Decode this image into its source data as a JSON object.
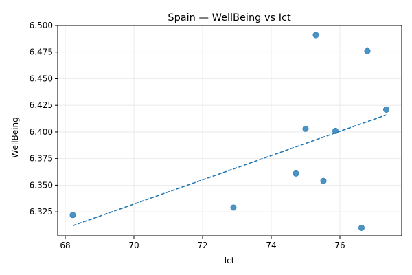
{
  "chart_data": {
    "type": "scatter",
    "title": "Spain — WellBeing vs Ict",
    "xlabel": "Ict",
    "ylabel": "WellBeing",
    "xlim": [
      67.78,
      77.8
    ],
    "ylim": [
      6.3025,
      6.5
    ],
    "x_ticks": [
      68,
      70,
      72,
      74,
      76
    ],
    "x_tick_labels": [
      "68",
      "70",
      "72",
      "74",
      "76"
    ],
    "y_ticks": [
      6.325,
      6.35,
      6.375,
      6.4,
      6.425,
      6.45,
      6.475,
      6.5
    ],
    "y_tick_labels": [
      "6.325",
      "6.350",
      "6.375",
      "6.400",
      "6.425",
      "6.450",
      "6.475",
      "6.500"
    ],
    "grid": true,
    "points": [
      {
        "x": 68.22,
        "y": 6.322
      },
      {
        "x": 72.9,
        "y": 6.329
      },
      {
        "x": 74.72,
        "y": 6.361
      },
      {
        "x": 75.0,
        "y": 6.403
      },
      {
        "x": 75.3,
        "y": 6.491
      },
      {
        "x": 75.52,
        "y": 6.354
      },
      {
        "x": 75.87,
        "y": 6.401
      },
      {
        "x": 76.63,
        "y": 6.31
      },
      {
        "x": 76.8,
        "y": 6.476
      },
      {
        "x": 77.35,
        "y": 6.421
      }
    ],
    "trendline": {
      "style": "dashed",
      "x": [
        68.22,
        77.35
      ],
      "y": [
        6.312,
        6.416
      ]
    },
    "colors": {
      "points": "#1f77b4",
      "trendline": "#1f77b4",
      "grid": "#e6e6e6"
    }
  }
}
